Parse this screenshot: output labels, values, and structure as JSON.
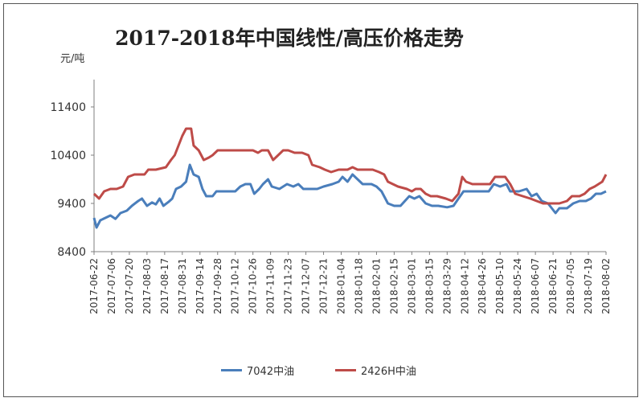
{
  "chart_data": {
    "type": "line",
    "title": "2017-2018年中国线性/高压价格走势",
    "ylabel": "元/吨",
    "ylim": [
      8400,
      11400
    ],
    "yticks": [
      8400,
      9400,
      10400,
      11400
    ],
    "grid": false,
    "legend_position": "bottom",
    "x": [
      "2017-06-22",
      "2017-07-06",
      "2017-07-20",
      "2017-08-03",
      "2017-08-17",
      "2017-08-31",
      "2017-09-14",
      "2017-09-28",
      "2017-10-12",
      "2017-10-26",
      "2017-11-09",
      "2017-11-23",
      "2017-12-07",
      "2017-12-21",
      "2018-01-04",
      "2018-01-18",
      "2018-02-01",
      "2018-02-15",
      "2018-03-01",
      "2018-03-15",
      "2018-03-29",
      "2018-04-12",
      "2018-04-26",
      "2018-05-10",
      "2018-05-24",
      "2018-06-07",
      "2018-06-21",
      "2018-07-05",
      "2018-07-19",
      "2018-08-02"
    ],
    "xrange": [
      "2017-06-22",
      "2018-08-02"
    ],
    "series": [
      {
        "name": "7042中油",
        "color": "#4a7ebb",
        "points": [
          [
            "2017-06-22",
            9100
          ],
          [
            "2017-06-24",
            8900
          ],
          [
            "2017-06-27",
            9050
          ],
          [
            "2017-07-01",
            9100
          ],
          [
            "2017-07-05",
            9150
          ],
          [
            "2017-07-09",
            9080
          ],
          [
            "2017-07-13",
            9200
          ],
          [
            "2017-07-18",
            9250
          ],
          [
            "2017-07-22",
            9350
          ],
          [
            "2017-07-27",
            9450
          ],
          [
            "2017-07-30",
            9500
          ],
          [
            "2017-08-03",
            9350
          ],
          [
            "2017-08-07",
            9420
          ],
          [
            "2017-08-10",
            9380
          ],
          [
            "2017-08-13",
            9500
          ],
          [
            "2017-08-16",
            9350
          ],
          [
            "2017-08-20",
            9430
          ],
          [
            "2017-08-23",
            9500
          ],
          [
            "2017-08-26",
            9700
          ],
          [
            "2017-08-30",
            9750
          ],
          [
            "2017-09-03",
            9850
          ],
          [
            "2017-09-06",
            10200
          ],
          [
            "2017-09-09",
            10000
          ],
          [
            "2017-09-13",
            9950
          ],
          [
            "2017-09-16",
            9700
          ],
          [
            "2017-09-19",
            9550
          ],
          [
            "2017-09-24",
            9550
          ],
          [
            "2017-09-27",
            9650
          ],
          [
            "2017-10-05",
            9650
          ],
          [
            "2017-10-12",
            9650
          ],
          [
            "2017-10-16",
            9750
          ],
          [
            "2017-10-20",
            9800
          ],
          [
            "2017-10-24",
            9800
          ],
          [
            "2017-10-27",
            9600
          ],
          [
            "2017-10-31",
            9700
          ],
          [
            "2017-11-03",
            9800
          ],
          [
            "2017-11-07",
            9900
          ],
          [
            "2017-11-10",
            9750
          ],
          [
            "2017-11-16",
            9700
          ],
          [
            "2017-11-22",
            9800
          ],
          [
            "2017-11-27",
            9750
          ],
          [
            "2017-12-01",
            9800
          ],
          [
            "2017-12-05",
            9700
          ],
          [
            "2017-12-11",
            9700
          ],
          [
            "2017-12-16",
            9700
          ],
          [
            "2017-12-21",
            9750
          ],
          [
            "2017-12-28",
            9800
          ],
          [
            "2018-01-02",
            9850
          ],
          [
            "2018-01-05",
            9950
          ],
          [
            "2018-01-09",
            9850
          ],
          [
            "2018-01-13",
            10000
          ],
          [
            "2018-01-17",
            9900
          ],
          [
            "2018-01-21",
            9800
          ],
          [
            "2018-01-28",
            9800
          ],
          [
            "2018-02-01",
            9750
          ],
          [
            "2018-02-05",
            9650
          ],
          [
            "2018-02-10",
            9400
          ],
          [
            "2018-02-15",
            9350
          ],
          [
            "2018-02-20",
            9350
          ],
          [
            "2018-02-27",
            9550
          ],
          [
            "2018-03-03",
            9500
          ],
          [
            "2018-03-07",
            9550
          ],
          [
            "2018-03-12",
            9400
          ],
          [
            "2018-03-17",
            9350
          ],
          [
            "2018-03-22",
            9350
          ],
          [
            "2018-03-29",
            9320
          ],
          [
            "2018-04-03",
            9350
          ],
          [
            "2018-04-07",
            9500
          ],
          [
            "2018-04-11",
            9650
          ],
          [
            "2018-04-16",
            9650
          ],
          [
            "2018-04-24",
            9650
          ],
          [
            "2018-05-01",
            9650
          ],
          [
            "2018-05-05",
            9800
          ],
          [
            "2018-05-10",
            9750
          ],
          [
            "2018-05-15",
            9800
          ],
          [
            "2018-05-18",
            9650
          ],
          [
            "2018-05-25",
            9650
          ],
          [
            "2018-05-31",
            9700
          ],
          [
            "2018-06-04",
            9550
          ],
          [
            "2018-06-08",
            9600
          ],
          [
            "2018-06-12",
            9450
          ],
          [
            "2018-06-17",
            9400
          ],
          [
            "2018-06-20",
            9300
          ],
          [
            "2018-06-23",
            9200
          ],
          [
            "2018-06-26",
            9300
          ],
          [
            "2018-07-02",
            9300
          ],
          [
            "2018-07-07",
            9400
          ],
          [
            "2018-07-12",
            9450
          ],
          [
            "2018-07-17",
            9450
          ],
          [
            "2018-07-21",
            9500
          ],
          [
            "2018-07-25",
            9600
          ],
          [
            "2018-07-29",
            9600
          ],
          [
            "2018-08-02",
            9650
          ]
        ]
      },
      {
        "name": "2426H中油",
        "color": "#be4b48",
        "points": [
          [
            "2017-06-22",
            9600
          ],
          [
            "2017-06-26",
            9500
          ],
          [
            "2017-06-30",
            9650
          ],
          [
            "2017-07-05",
            9700
          ],
          [
            "2017-07-10",
            9700
          ],
          [
            "2017-07-15",
            9750
          ],
          [
            "2017-07-19",
            9950
          ],
          [
            "2017-07-24",
            10000
          ],
          [
            "2017-08-01",
            10000
          ],
          [
            "2017-08-04",
            10100
          ],
          [
            "2017-08-10",
            10100
          ],
          [
            "2017-08-18",
            10150
          ],
          [
            "2017-08-22",
            10300
          ],
          [
            "2017-08-25",
            10400
          ],
          [
            "2017-08-28",
            10600
          ],
          [
            "2017-08-31",
            10800
          ],
          [
            "2017-09-03",
            10950
          ],
          [
            "2017-09-07",
            10950
          ],
          [
            "2017-09-09",
            10600
          ],
          [
            "2017-09-13",
            10500
          ],
          [
            "2017-09-17",
            10300
          ],
          [
            "2017-09-21",
            10350
          ],
          [
            "2017-09-24",
            10400
          ],
          [
            "2017-09-28",
            10500
          ],
          [
            "2017-10-05",
            10500
          ],
          [
            "2017-10-12",
            10500
          ],
          [
            "2017-10-19",
            10500
          ],
          [
            "2017-10-26",
            10500
          ],
          [
            "2017-10-30",
            10450
          ],
          [
            "2017-11-02",
            10500
          ],
          [
            "2017-11-07",
            10500
          ],
          [
            "2017-11-11",
            10300
          ],
          [
            "2017-11-15",
            10400
          ],
          [
            "2017-11-19",
            10500
          ],
          [
            "2017-11-23",
            10500
          ],
          [
            "2017-11-28",
            10450
          ],
          [
            "2017-12-04",
            10450
          ],
          [
            "2017-12-09",
            10400
          ],
          [
            "2017-12-12",
            10200
          ],
          [
            "2017-12-18",
            10150
          ],
          [
            "2017-12-22",
            10100
          ],
          [
            "2017-12-27",
            10050
          ],
          [
            "2018-01-02",
            10100
          ],
          [
            "2018-01-09",
            10100
          ],
          [
            "2018-01-13",
            10150
          ],
          [
            "2018-01-17",
            10100
          ],
          [
            "2018-01-22",
            10100
          ],
          [
            "2018-01-29",
            10100
          ],
          [
            "2018-02-03",
            10050
          ],
          [
            "2018-02-07",
            10000
          ],
          [
            "2018-02-10",
            9850
          ],
          [
            "2018-02-14",
            9800
          ],
          [
            "2018-02-18",
            9750
          ],
          [
            "2018-02-25",
            9700
          ],
          [
            "2018-03-01",
            9650
          ],
          [
            "2018-03-04",
            9700
          ],
          [
            "2018-03-08",
            9700
          ],
          [
            "2018-03-12",
            9600
          ],
          [
            "2018-03-16",
            9550
          ],
          [
            "2018-03-21",
            9550
          ],
          [
            "2018-03-28",
            9500
          ],
          [
            "2018-04-02",
            9450
          ],
          [
            "2018-04-07",
            9600
          ],
          [
            "2018-04-10",
            9950
          ],
          [
            "2018-04-13",
            9850
          ],
          [
            "2018-04-18",
            9800
          ],
          [
            "2018-04-24",
            9800
          ],
          [
            "2018-05-02",
            9800
          ],
          [
            "2018-05-06",
            9950
          ],
          [
            "2018-05-14",
            9950
          ],
          [
            "2018-05-18",
            9800
          ],
          [
            "2018-05-22",
            9600
          ],
          [
            "2018-05-28",
            9550
          ],
          [
            "2018-06-03",
            9500
          ],
          [
            "2018-06-08",
            9450
          ],
          [
            "2018-06-13",
            9400
          ],
          [
            "2018-06-20",
            9400
          ],
          [
            "2018-06-26",
            9400
          ],
          [
            "2018-07-02",
            9450
          ],
          [
            "2018-07-06",
            9550
          ],
          [
            "2018-07-12",
            9550
          ],
          [
            "2018-07-16",
            9600
          ],
          [
            "2018-07-20",
            9700
          ],
          [
            "2018-07-24",
            9750
          ],
          [
            "2018-07-27",
            9800
          ],
          [
            "2018-07-30",
            9850
          ],
          [
            "2018-08-02",
            10000
          ]
        ]
      }
    ]
  }
}
